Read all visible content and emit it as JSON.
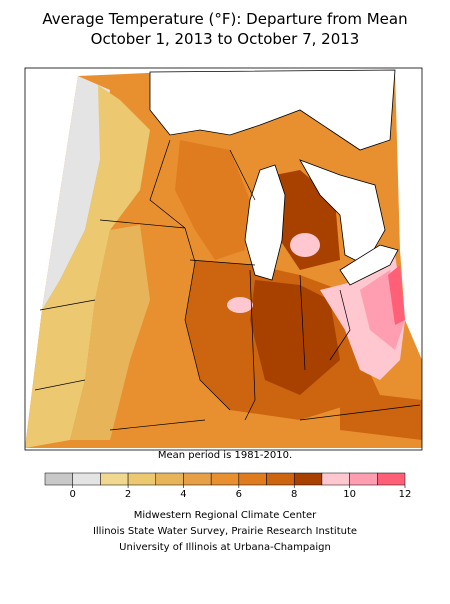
{
  "title": [
    "Average Temperature (°F): Departure from Mean",
    "October 1, 2013 to October 7, 2013"
  ],
  "note": "Mean period is 1981-2010.",
  "legend": {
    "bins": [
      -1,
      0,
      1,
      2,
      3,
      4,
      5,
      6,
      7,
      8,
      9,
      10,
      11,
      12
    ],
    "colors": [
      "#c8c8c8",
      "#e4e4e4",
      "#f0d890",
      "#ecc870",
      "#e8b45a",
      "#e8a048",
      "#e89030",
      "#e07c20",
      "#cc6410",
      "#a84000",
      "#ffc8d0",
      "#ff9eb0",
      "#ff6078"
    ],
    "ticks": [
      0,
      2,
      4,
      6,
      8,
      10,
      12
    ]
  },
  "credits": [
    "Midwestern Regional Climate Center",
    "Illinois State Water Survey, Prairie Research Institute",
    "University of Illinois at Urbana-Champaign"
  ]
}
